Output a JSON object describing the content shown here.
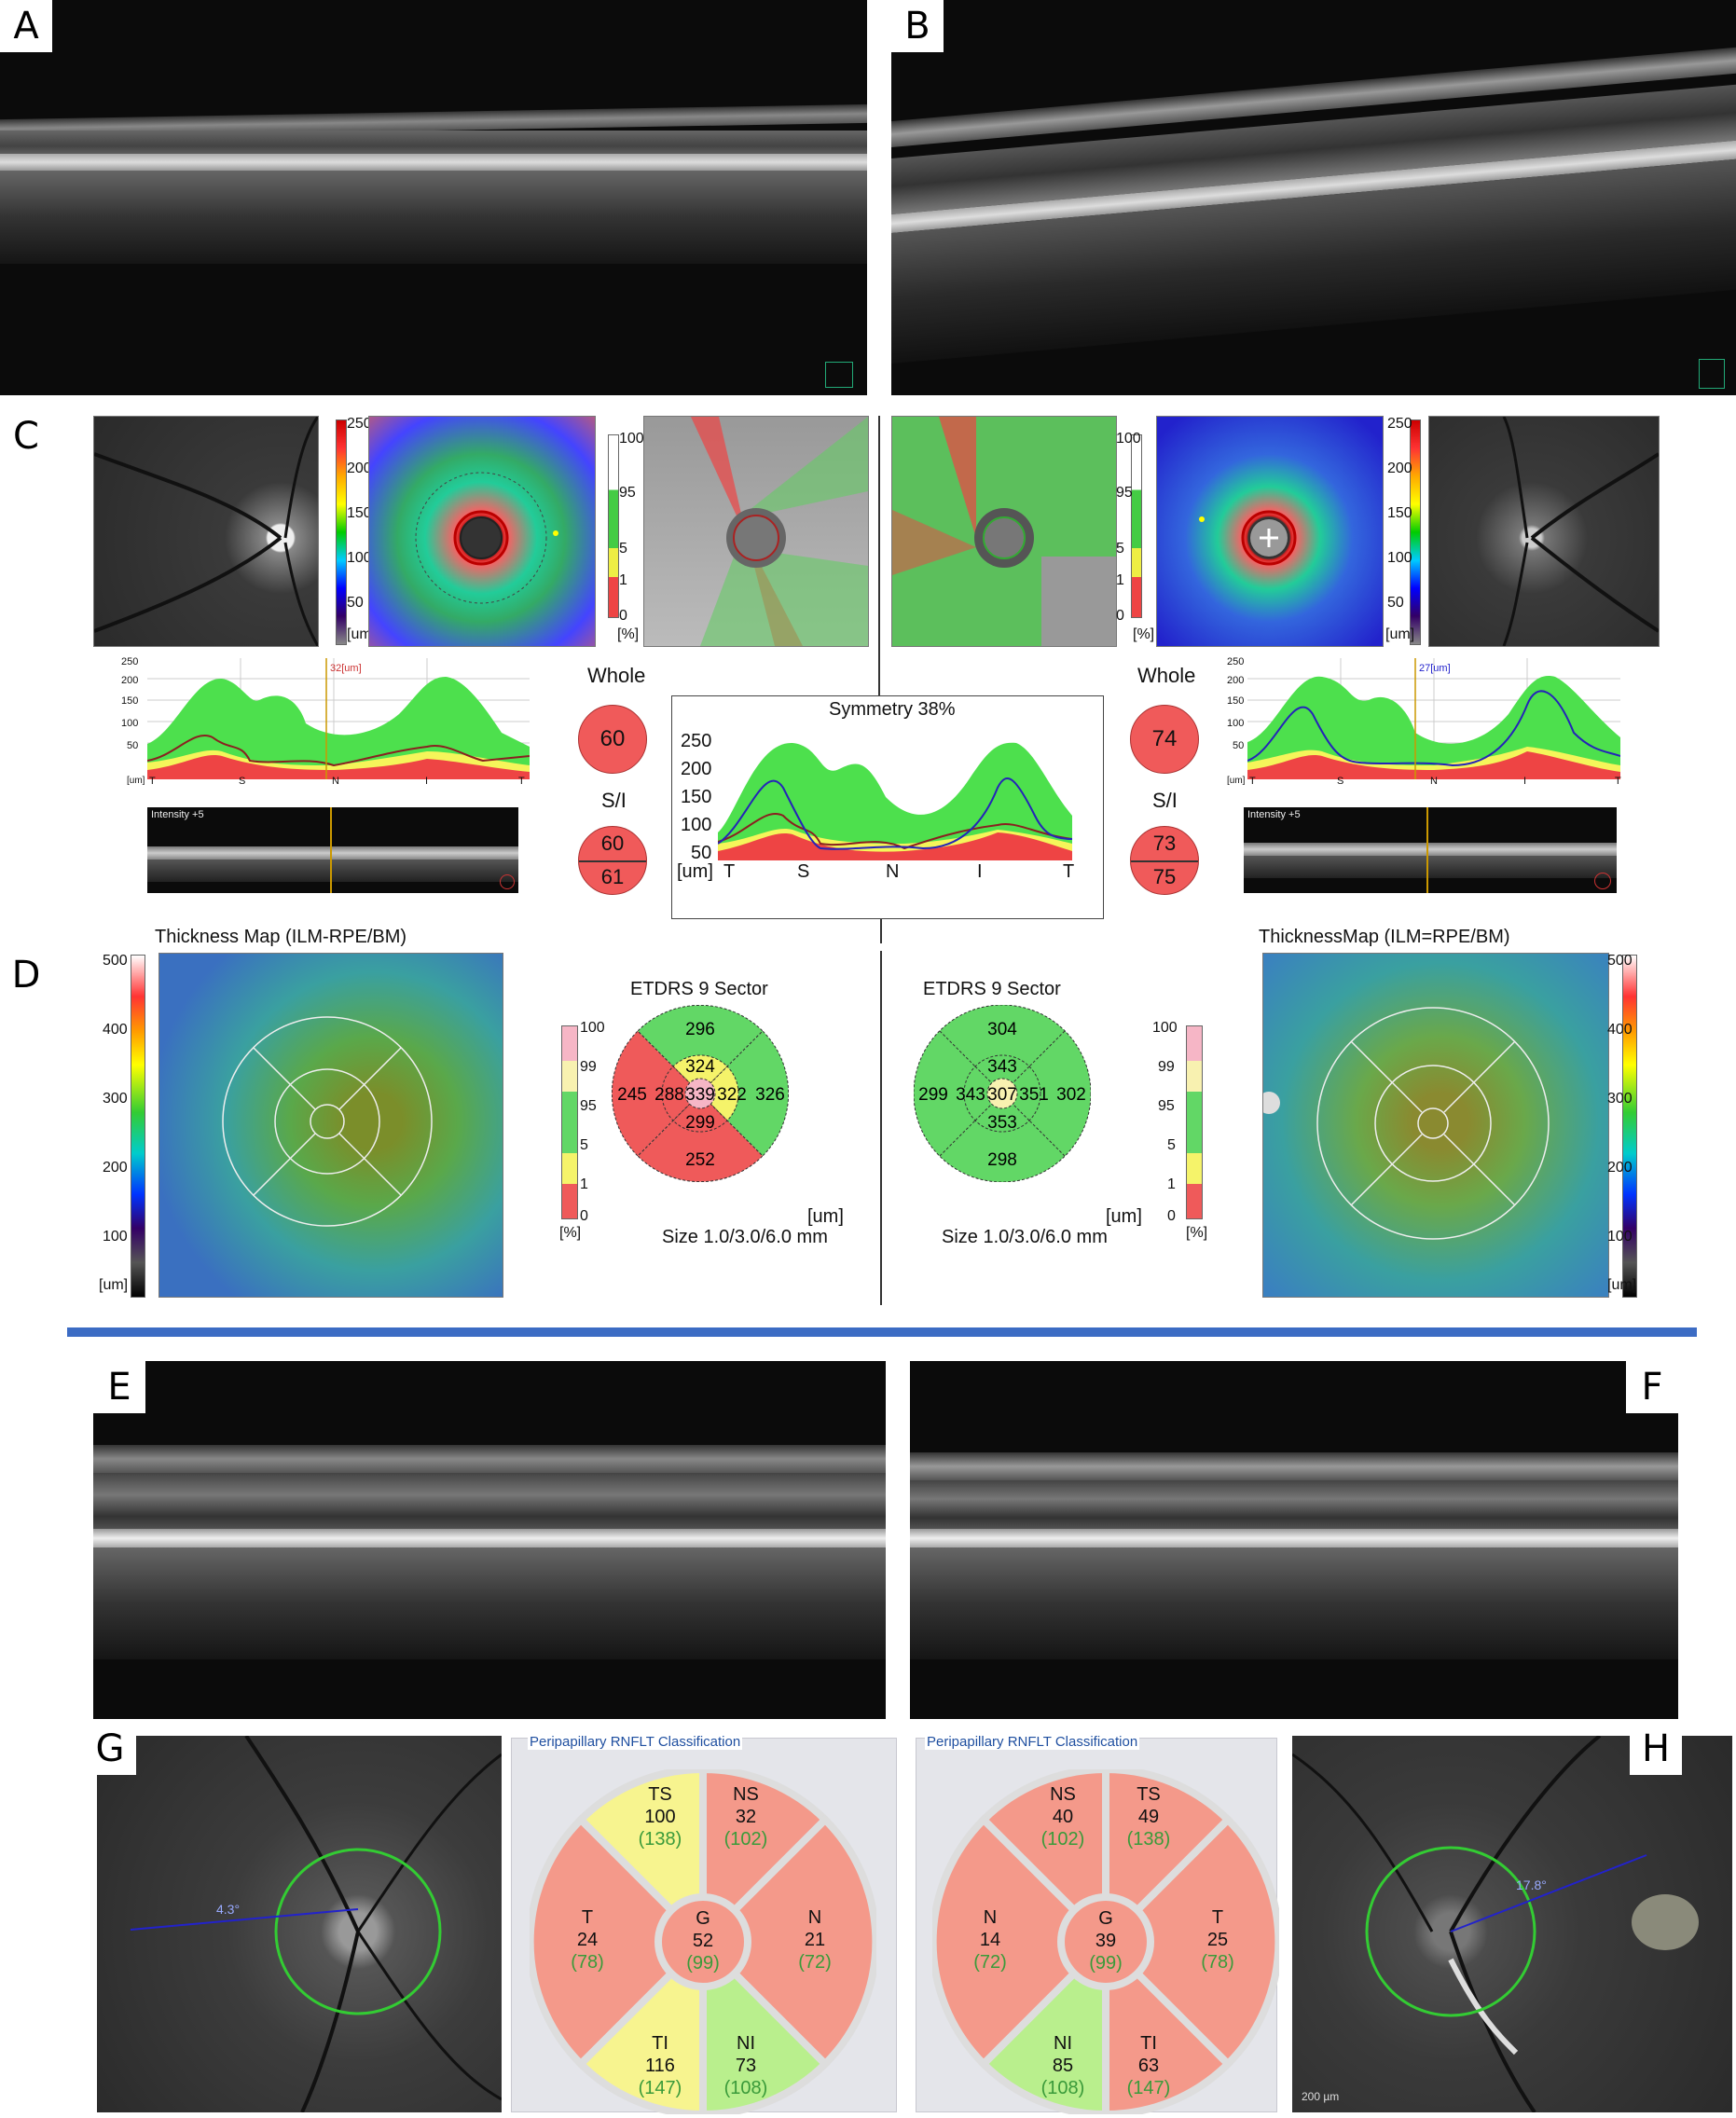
{
  "panels": {
    "a": "A",
    "b": "B",
    "c": "C",
    "d": "D",
    "e": "E",
    "f": "F",
    "g": "G",
    "h": "H"
  },
  "panel_c": {
    "thickness_scale_ticks": [
      "250",
      "200",
      "150",
      "100",
      "50",
      "[um]"
    ],
    "percent_scale_ticks": [
      "100",
      "95",
      "5",
      "1",
      "0",
      "[%]"
    ],
    "left_profile_marker": "32[um]",
    "right_profile_marker": "27[um]",
    "profile_axis_ticks": [
      "250",
      "200",
      "150",
      "100",
      "50"
    ],
    "profile_x_labels": [
      "[um]",
      "T",
      "S",
      "N",
      "I",
      "T"
    ],
    "intensity_label": "Intensity +5",
    "whole_label": "Whole",
    "si_label": "S/I",
    "left_whole": "60",
    "left_si_top": "60",
    "left_si_bottom": "61",
    "right_whole": "74",
    "right_si_top": "73",
    "right_si_bottom": "75",
    "symmetry": {
      "title": "Symmetry 38%",
      "y_ticks": [
        "250",
        "200",
        "150",
        "100",
        "50"
      ],
      "x_labels": [
        "[um]",
        "T",
        "S",
        "N",
        "I",
        "T"
      ]
    }
  },
  "panel_d": {
    "left_map_title": "Thickness Map (ILM-RPE/BM)",
    "right_map_title": "ThicknessMap (ILM=RPE/BM)",
    "map_scale_ticks": [
      "500",
      "400",
      "300",
      "200",
      "100",
      "[um]"
    ],
    "percent_ticks": [
      "100",
      "99",
      "95",
      "5",
      "1",
      "0",
      "[%]"
    ],
    "etdrs_title": "ETDRS 9 Sector",
    "unit": "[um]",
    "size_label": "Size 1.0/3.0/6.0 mm",
    "left_etdrs": {
      "center": "339",
      "inner_sup": "324",
      "inner_temp": "288",
      "inner_nasal": "322",
      "inner_inf": "299",
      "outer_sup": "296",
      "outer_temp": "245",
      "outer_nasal": "326",
      "outer_inf": "252"
    },
    "right_etdrs": {
      "center": "307",
      "inner_sup": "343",
      "inner_temp": "343",
      "inner_nasal": "351",
      "inner_inf": "353",
      "outer_sup": "304",
      "outer_temp": "299",
      "outer_nasal": "302",
      "outer_inf": "298"
    }
  },
  "panel_g": {
    "angle": "4.3°",
    "rnflt_title": "Peripapillary RNFLT Classification",
    "sectors": {
      "TS": {
        "name": "TS",
        "value": "100",
        "normal": "(138)"
      },
      "NS": {
        "name": "NS",
        "value": "32",
        "normal": "(102)"
      },
      "T": {
        "name": "T",
        "value": "24",
        "normal": "(78)"
      },
      "G": {
        "name": "G",
        "value": "52",
        "normal": "(99)"
      },
      "N": {
        "name": "N",
        "value": "21",
        "normal": "(72)"
      },
      "TI": {
        "name": "TI",
        "value": "116",
        "normal": "(147)"
      },
      "NI": {
        "name": "NI",
        "value": "73",
        "normal": "(108)"
      }
    }
  },
  "panel_h": {
    "angle": "17.8°",
    "scale_bar": "200 µm",
    "rnflt_title": "Peripapillary RNFLT Classification",
    "sectors": {
      "NS": {
        "name": "NS",
        "value": "40",
        "normal": "(102)"
      },
      "TS": {
        "name": "TS",
        "value": "49",
        "normal": "(138)"
      },
      "N": {
        "name": "N",
        "value": "14",
        "normal": "(72)"
      },
      "G": {
        "name": "G",
        "value": "39",
        "normal": "(99)"
      },
      "T": {
        "name": "T",
        "value": "25",
        "normal": "(78)"
      },
      "NI": {
        "name": "NI",
        "value": "85",
        "normal": "(108)"
      },
      "TI": {
        "name": "TI",
        "value": "63",
        "normal": "(147)"
      }
    }
  },
  "colors": {
    "red": "#f4998a",
    "yellow": "#f7f48f",
    "green": "#b9ef8d",
    "etdrs_red": "#ef5a5a",
    "etdrs_yellow": "#f5f36a",
    "etdrs_green": "#62d766",
    "etdrs_pink": "#f6b6c6",
    "etdrs_lightyellow": "#f8f1b0",
    "divider_blue": "#3c6cc4"
  }
}
